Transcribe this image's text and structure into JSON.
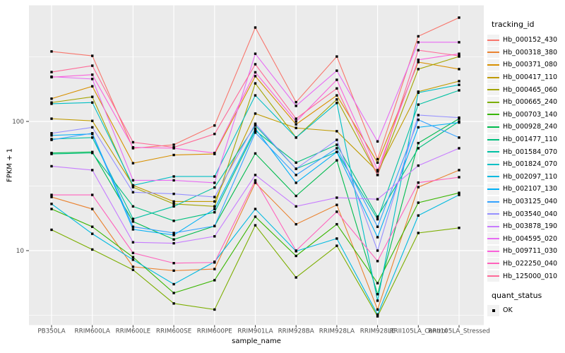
{
  "figure": {
    "y_axis": {
      "title": "FPKM + 1",
      "scale": "log10",
      "tick_labels": [
        "100",
        "10"
      ],
      "tick_values": [
        100,
        10
      ]
    },
    "x_axis": {
      "title": "sample_name"
    },
    "legend": {
      "tracking_title": "tracking_id",
      "quant_title": "quant_status",
      "quant_items": [
        {
          "label": "OK",
          "marker": "black-square"
        }
      ]
    },
    "colors": {
      "panel_bg": "#EBEBEB",
      "grid_major": "#FFFFFF",
      "grid_minor": "#FFFFFF",
      "legend_key_bg": "#F2F2F2",
      "axis_text": "#4D4D4D",
      "tick_mark": "#333333",
      "point": "#000000"
    }
  },
  "chart_data": {
    "type": "line",
    "title": "",
    "xlabel": "sample_name",
    "ylabel": "FPKM + 1",
    "y_scale": "log10",
    "ylim": [
      2.8,
      800
    ],
    "y_major_ticks": [
      10,
      100
    ],
    "y_minor_ticks": [
      3.162,
      31.62,
      316.2
    ],
    "grid": true,
    "legend_position": "right",
    "point_marker": {
      "shape": "square",
      "color": "#000000",
      "meaning": "quant_status = OK"
    },
    "x_categories": [
      "PB350LA",
      "RRIM600LA",
      "RRIM600LE",
      "RRIM600SE",
      "RRIM600PE",
      "RRIM901LA",
      "RRIM928BA",
      "RRIM928LA",
      "RRIM928LE",
      "RRII105LA_Control",
      "RRII105LA_Stressed"
    ],
    "series": [
      {
        "name": "Hb_000152_430",
        "color": "#F8766D",
        "values": [
          348,
          322,
          62,
          66,
          93,
          533,
          141,
          318,
          51,
          456,
          636
        ]
      },
      {
        "name": "Hb_000318_380",
        "color": "#EA8331",
        "values": [
          26,
          21,
          7.5,
          7.0,
          7.2,
          33.5,
          16,
          22.6,
          3.5,
          31,
          42
        ]
      },
      {
        "name": "Hb_000371_080",
        "color": "#D89000",
        "values": [
          150,
          187,
          47.5,
          55,
          56,
          224,
          95,
          159,
          48,
          288,
          254
        ]
      },
      {
        "name": "Hb_000417_110",
        "color": "#C09B00",
        "values": [
          105,
          101,
          32,
          24,
          24,
          115,
          89,
          84,
          41,
          170,
          205
        ]
      },
      {
        "name": "Hb_000465_060",
        "color": "#A3A500",
        "values": [
          140,
          155,
          31,
          23,
          22,
          197,
          75,
          148,
          38.5,
          254,
          318
        ]
      },
      {
        "name": "Hb_000665_240",
        "color": "#7CAE00",
        "values": [
          14.5,
          10.2,
          7.1,
          3.9,
          3.5,
          15.7,
          6.2,
          10.9,
          3.1,
          13.7,
          15
        ]
      },
      {
        "name": "Hb_000703_140",
        "color": "#39B600",
        "values": [
          21,
          15.3,
          8.9,
          4.7,
          5.9,
          18.3,
          9.1,
          16,
          5.6,
          23.5,
          28
        ]
      },
      {
        "name": "Hb_000928_240",
        "color": "#00BB4E",
        "values": [
          57,
          58,
          16.8,
          12.2,
          15.5,
          56.5,
          26.5,
          50,
          4.6,
          68,
          105
        ]
      },
      {
        "name": "Hb_001477_110",
        "color": "#00BF7D",
        "values": [
          56,
          57,
          22,
          17,
          19.8,
          85,
          48,
          66,
          18.3,
          62,
          100
        ]
      },
      {
        "name": "Hb_001584_070",
        "color": "#00C1A3",
        "values": [
          73,
          75,
          17.6,
          22,
          30.8,
          93,
          43,
          58,
          17.5,
          135,
          174
        ]
      },
      {
        "name": "Hb_001824_070",
        "color": "#00BFC4",
        "values": [
          137,
          140,
          32,
          37.5,
          37.5,
          159,
          75,
          139,
          4.1,
          167,
          192
        ]
      },
      {
        "name": "Hb_002097_110",
        "color": "#00BAE0",
        "values": [
          23,
          13.5,
          8.5,
          5.5,
          8.2,
          21,
          9.9,
          12.4,
          3.2,
          18.7,
          27
        ]
      },
      {
        "name": "Hb_002107_130",
        "color": "#00B0F6",
        "values": [
          78,
          80,
          14.6,
          13.2,
          21,
          88,
          33.5,
          58,
          12.7,
          90,
          98
        ]
      },
      {
        "name": "Hb_003125_040",
        "color": "#35A2FF",
        "values": [
          72,
          81,
          15.3,
          13.7,
          15.5,
          82,
          38.5,
          62,
          15.3,
          103,
          75
        ]
      },
      {
        "name": "Hb_003540_040",
        "color": "#9590FF",
        "values": [
          81,
          90,
          28.3,
          27.5,
          26,
          96,
          43,
          72,
          10,
          112,
          107
        ]
      },
      {
        "name": "Hb_003878_190",
        "color": "#C77CFF",
        "values": [
          45,
          42,
          11.6,
          11.4,
          12.9,
          38.5,
          22,
          25.7,
          25,
          45.5,
          62
        ]
      },
      {
        "name": "Hb_004595_020",
        "color": "#E76BF3",
        "values": [
          222,
          213,
          35,
          35,
          33.5,
          334,
          132,
          247,
          70,
          410,
          410
        ]
      },
      {
        "name": "Hb_009711_030",
        "color": "#FA62DB",
        "values": [
          220,
          230,
          63,
          62,
          57,
          240,
          100,
          210,
          42,
          300,
          334
        ]
      },
      {
        "name": "Hb_022250_040",
        "color": "#FF62BC",
        "values": [
          27,
          27,
          9.6,
          8.0,
          8.1,
          35,
          10,
          20,
          8.3,
          33.6,
          37
        ]
      },
      {
        "name": "Hb_125000_010",
        "color": "#FF6A98",
        "values": [
          241,
          270,
          69,
          63,
          80,
          277,
          105,
          180,
          38.5,
          356,
          322
        ]
      }
    ]
  }
}
